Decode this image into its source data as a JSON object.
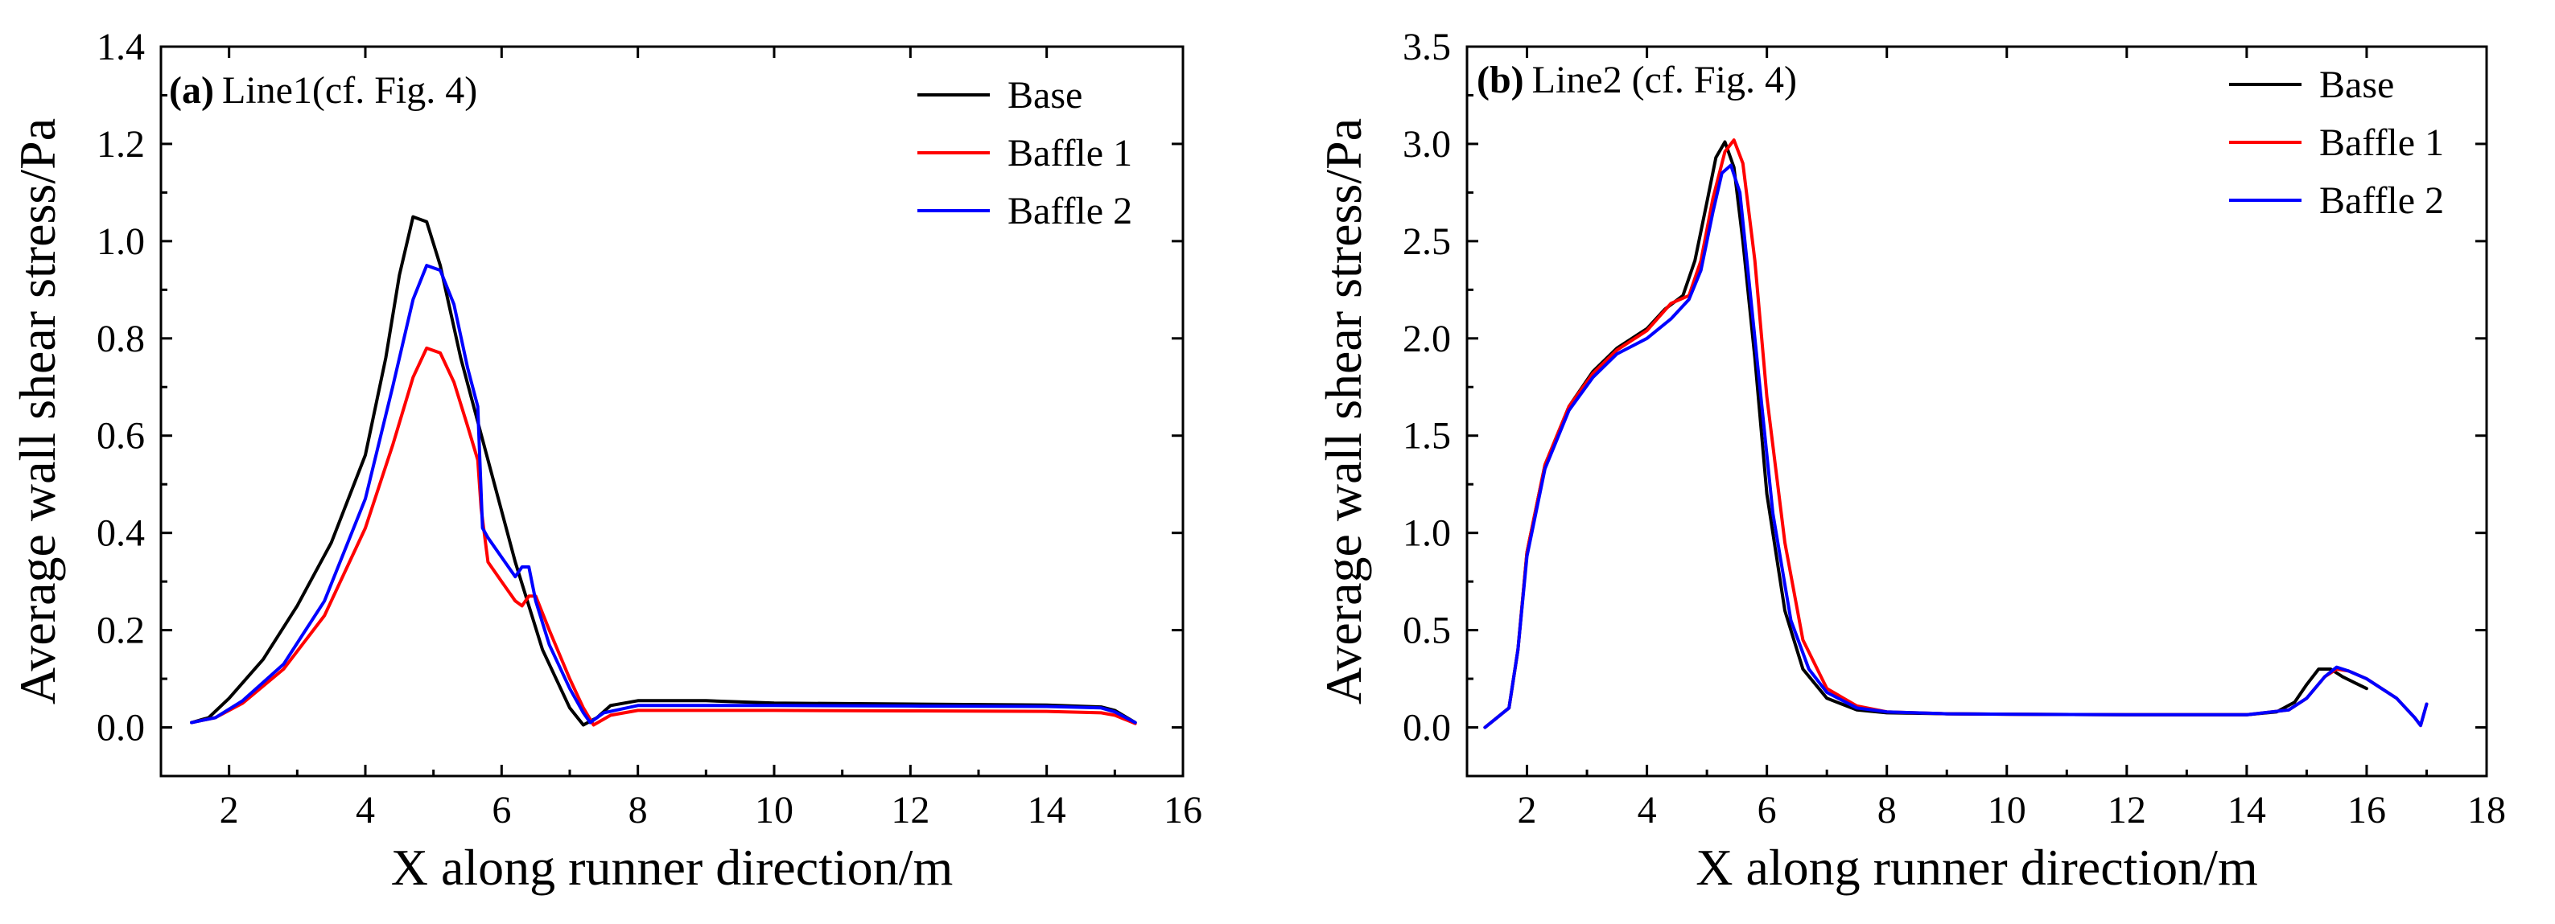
{
  "chart_data": [
    {
      "type": "line",
      "panel_tag": "(a)",
      "title": "Line1(cf. Fig. 4)",
      "xlabel": "X along runner direction/m",
      "ylabel": "Average wall shear stress/Pa",
      "xlim": [
        1,
        16
      ],
      "ylim": [
        -0.1,
        1.4
      ],
      "xticks": [
        2,
        4,
        6,
        8,
        10,
        12,
        14,
        16
      ],
      "yticks": [
        0.0,
        0.2,
        0.4,
        0.6,
        0.8,
        1.0,
        1.2,
        1.4
      ],
      "ytick_labels": [
        "0.0",
        "0.2",
        "0.4",
        "0.6",
        "0.8",
        "1.0",
        "1.2",
        "1.4"
      ],
      "legend_position": "top-right",
      "series": [
        {
          "name": "Base",
          "color": "#000000",
          "x": [
            1.45,
            1.7,
            2.0,
            2.5,
            3.0,
            3.5,
            4.0,
            4.3,
            4.5,
            4.7,
            4.9,
            5.1,
            5.4,
            5.8,
            6.2,
            6.6,
            7.0,
            7.2,
            7.4,
            7.6,
            8.0,
            9.0,
            10.0,
            12.0,
            14.0,
            14.8,
            15.0,
            15.3
          ],
          "y": [
            0.01,
            0.02,
            0.06,
            0.14,
            0.25,
            0.38,
            0.56,
            0.76,
            0.93,
            1.05,
            1.04,
            0.95,
            0.76,
            0.55,
            0.34,
            0.16,
            0.04,
            0.005,
            0.02,
            0.045,
            0.055,
            0.055,
            0.05,
            0.048,
            0.046,
            0.042,
            0.035,
            0.01
          ]
        },
        {
          "name": "Baffle 1",
          "color": "#ff0000",
          "x": [
            1.45,
            1.8,
            2.2,
            2.8,
            3.4,
            4.0,
            4.4,
            4.7,
            4.9,
            5.1,
            5.3,
            5.5,
            5.65,
            5.7,
            5.8,
            6.0,
            6.2,
            6.3,
            6.4,
            6.5,
            6.7,
            7.0,
            7.2,
            7.35,
            7.6,
            8.0,
            10.0,
            12.0,
            14.0,
            14.8,
            15.0,
            15.3
          ],
          "y": [
            0.01,
            0.02,
            0.05,
            0.12,
            0.23,
            0.41,
            0.58,
            0.72,
            0.78,
            0.77,
            0.71,
            0.62,
            0.55,
            0.45,
            0.34,
            0.3,
            0.26,
            0.25,
            0.27,
            0.27,
            0.2,
            0.1,
            0.04,
            0.005,
            0.025,
            0.035,
            0.035,
            0.034,
            0.033,
            0.03,
            0.025,
            0.008
          ]
        },
        {
          "name": "Baffle 2",
          "color": "#0000ff",
          "x": [
            1.45,
            1.8,
            2.2,
            2.8,
            3.4,
            4.0,
            4.4,
            4.7,
            4.9,
            5.1,
            5.3,
            5.5,
            5.65,
            5.72,
            5.8,
            6.0,
            6.2,
            6.3,
            6.4,
            6.5,
            6.7,
            7.0,
            7.2,
            7.3,
            7.5,
            8.0,
            10.0,
            12.0,
            14.0,
            14.8,
            15.0,
            15.3
          ],
          "y": [
            0.01,
            0.02,
            0.055,
            0.13,
            0.26,
            0.47,
            0.7,
            0.88,
            0.95,
            0.94,
            0.87,
            0.74,
            0.66,
            0.41,
            0.39,
            0.35,
            0.31,
            0.33,
            0.33,
            0.26,
            0.17,
            0.08,
            0.03,
            0.01,
            0.03,
            0.045,
            0.045,
            0.044,
            0.043,
            0.04,
            0.032,
            0.01
          ]
        }
      ]
    },
    {
      "type": "line",
      "panel_tag": "(b)",
      "title": "Line2 (cf. Fig. 4)",
      "xlabel": "X along runner direction/m",
      "ylabel": "Average wall shear stress/Pa",
      "xlim": [
        1,
        18
      ],
      "ylim": [
        -0.25,
        3.5
      ],
      "xticks": [
        2,
        4,
        6,
        8,
        10,
        12,
        14,
        16,
        18
      ],
      "yticks": [
        0.0,
        0.5,
        1.0,
        1.5,
        2.0,
        2.5,
        3.0,
        3.5
      ],
      "ytick_labels": [
        "0.0",
        "0.5",
        "1.0",
        "1.5",
        "2.0",
        "2.5",
        "3.0",
        "3.5"
      ],
      "legend_position": "top-right",
      "series": [
        {
          "name": "Base",
          "color": "#000000",
          "x": [
            1.3,
            1.5,
            1.7,
            1.85,
            2.0,
            2.3,
            2.7,
            3.1,
            3.5,
            4.0,
            4.3,
            4.6,
            4.8,
            5.0,
            5.15,
            5.3,
            5.45,
            5.6,
            5.8,
            6.0,
            6.3,
            6.6,
            7.0,
            7.5,
            8.0,
            9.0,
            10.0,
            12.0,
            14.0,
            14.5,
            14.8,
            15.0,
            15.2,
            15.4,
            15.6,
            15.8,
            16.0
          ],
          "y": [
            0.0,
            0.05,
            0.1,
            0.4,
            0.9,
            1.35,
            1.65,
            1.83,
            1.95,
            2.05,
            2.15,
            2.22,
            2.4,
            2.7,
            2.93,
            3.01,
            2.88,
            2.5,
            1.9,
            1.2,
            0.6,
            0.3,
            0.15,
            0.09,
            0.075,
            0.07,
            0.068,
            0.065,
            0.065,
            0.08,
            0.13,
            0.22,
            0.3,
            0.3,
            0.26,
            0.23,
            0.2
          ]
        },
        {
          "name": "Baffle 1",
          "color": "#ff0000",
          "x": [
            1.3,
            1.5,
            1.7,
            1.85,
            2.0,
            2.3,
            2.7,
            3.1,
            3.5,
            4.0,
            4.4,
            4.7,
            4.9,
            5.1,
            5.3,
            5.45,
            5.6,
            5.8,
            6.0,
            6.3,
            6.6,
            7.0,
            7.5,
            8.0,
            9.0,
            10.0,
            12.0,
            14.0,
            14.7,
            15.0,
            15.3,
            15.5,
            15.7,
            16.0,
            16.5,
            16.8,
            16.9,
            17.0
          ],
          "y": [
            0.0,
            0.05,
            0.1,
            0.4,
            0.9,
            1.35,
            1.65,
            1.82,
            1.94,
            2.04,
            2.18,
            2.22,
            2.4,
            2.72,
            2.96,
            3.02,
            2.9,
            2.4,
            1.7,
            0.95,
            0.45,
            0.2,
            0.11,
            0.08,
            0.07,
            0.068,
            0.065,
            0.065,
            0.09,
            0.15,
            0.26,
            0.3,
            0.29,
            0.25,
            0.15,
            0.05,
            0.01,
            0.12
          ]
        },
        {
          "name": "Baffle 2",
          "color": "#0000ff",
          "x": [
            1.3,
            1.5,
            1.7,
            1.85,
            2.0,
            2.3,
            2.7,
            3.1,
            3.5,
            4.0,
            4.4,
            4.7,
            4.9,
            5.1,
            5.25,
            5.4,
            5.55,
            5.7,
            5.9,
            6.1,
            6.4,
            6.7,
            7.0,
            7.5,
            8.0,
            9.0,
            10.0,
            12.0,
            14.0,
            14.7,
            15.0,
            15.3,
            15.5,
            15.7,
            16.0,
            16.5,
            16.8,
            16.9,
            17.0
          ],
          "y": [
            0.0,
            0.05,
            0.1,
            0.4,
            0.88,
            1.33,
            1.63,
            1.8,
            1.92,
            2.0,
            2.1,
            2.2,
            2.35,
            2.65,
            2.85,
            2.89,
            2.75,
            2.3,
            1.7,
            1.1,
            0.55,
            0.3,
            0.18,
            0.1,
            0.08,
            0.07,
            0.068,
            0.065,
            0.065,
            0.09,
            0.15,
            0.26,
            0.31,
            0.29,
            0.25,
            0.15,
            0.05,
            0.01,
            0.12
          ]
        }
      ]
    }
  ]
}
